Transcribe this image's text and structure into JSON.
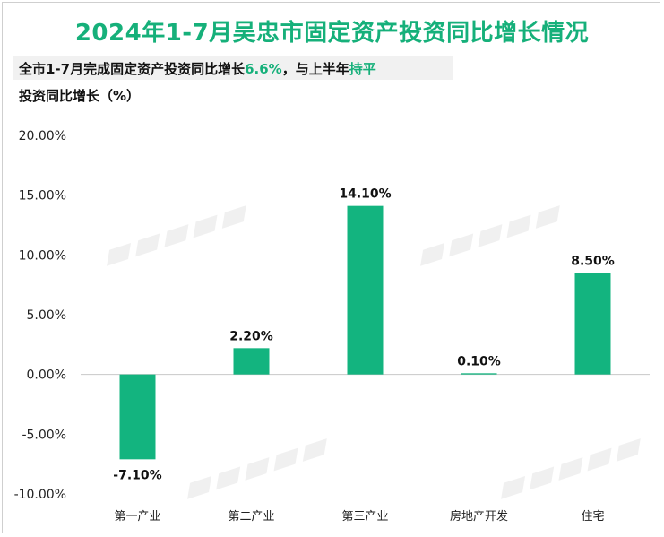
{
  "header": {
    "title": "2024年1-7月吴忠市固定资产投资同比增长情况",
    "subtitle_parts": [
      {
        "text": "全市1-7月完成固定资产投资同比增长",
        "highlight": false
      },
      {
        "text": "6.6%",
        "highlight": true
      },
      {
        "text": "，与上半年",
        "highlight": false
      },
      {
        "text": "持平",
        "highlight": true
      }
    ],
    "unit_label": "投资同比增长（%）"
  },
  "colors": {
    "accent": "#16b07a",
    "bar": "#13b47f",
    "zero_line": "#c8c8c8",
    "watermark": "#e6e6e6"
  },
  "chart_data": {
    "type": "bar",
    "title": "2024年1-7月吴忠市固定资产投资同比增长情况",
    "ylabel": "投资同比增长（%）",
    "categories": [
      "第一产业",
      "第二产业",
      "第三产业",
      "房地产开发",
      "住宅"
    ],
    "values": [
      -7.1,
      2.2,
      14.1,
      0.1,
      8.5
    ],
    "data_labels": [
      "-7.10%",
      "2.20%",
      "14.10%",
      "0.10%",
      "8.50%"
    ],
    "ylim": [
      -10,
      20
    ],
    "yticks": [
      20,
      15,
      10,
      5,
      0,
      -5,
      -10
    ],
    "ytick_labels": [
      "20.00%",
      "15.00%",
      "10.00%",
      "5.00%",
      "0.00%",
      "-5.00%",
      "-10.00%"
    ],
    "grid": false,
    "legend": "none"
  }
}
